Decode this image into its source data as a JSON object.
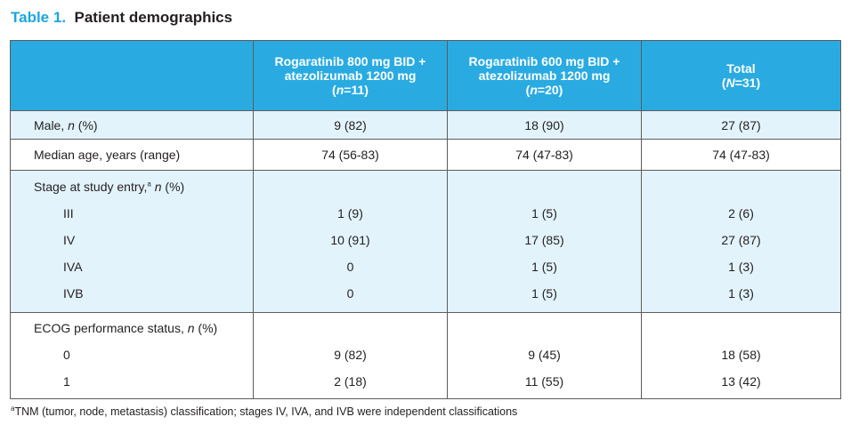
{
  "title": {
    "label": "Table 1.",
    "text": "Patient demographics"
  },
  "header": {
    "col1": {
      "line1": "Rogaratinib 800 mg BID +",
      "line2": "atezolizumab 1200 mg",
      "n_var": "n",
      "n_val": "=11"
    },
    "col2": {
      "line1": "Rogaratinib 600 mg BID +",
      "line2": "atezolizumab 1200 mg",
      "n_var": "n",
      "n_val": "=20"
    },
    "col3": {
      "line1": "Total",
      "n_var": "N",
      "n_val": "=31"
    }
  },
  "rows": {
    "male": {
      "label": "Male, ",
      "n_var": "n",
      "suffix": " (%)",
      "values": [
        "9 (82)",
        "18 (90)",
        "27 (87)"
      ]
    },
    "age": {
      "label": "Median age, years (range)",
      "values": [
        "74 (56-83)",
        "74 (47-83)",
        "74 (47-83)"
      ]
    },
    "stage": {
      "label": "Stage at study entry,",
      "sup": "a",
      "n_var": "n",
      "suffix": " (%)",
      "items": [
        {
          "label": "III",
          "values": [
            "1 (9)",
            "1 (5)",
            "2 (6)"
          ]
        },
        {
          "label": "IV",
          "values": [
            "10 (91)",
            "17 (85)",
            "27 (87)"
          ]
        },
        {
          "label": "IVA",
          "values": [
            "0",
            "1 (5)",
            "1 (3)"
          ]
        },
        {
          "label": "IVB",
          "values": [
            "0",
            "1 (5)",
            "1 (3)"
          ]
        }
      ]
    },
    "ecog": {
      "label": "ECOG performance status, ",
      "n_var": "n",
      "suffix": " (%)",
      "items": [
        {
          "label": "0",
          "values": [
            "9 (82)",
            "9 (45)",
            "18 (58)"
          ]
        },
        {
          "label": "1",
          "values": [
            "2 (18)",
            "11 (55)",
            "13 (42)"
          ]
        }
      ]
    }
  },
  "footnote": {
    "sup": "a",
    "text": "TNM (tumor, node, metastasis) classification; stages IV, IVA, and IVB were independent classifications"
  }
}
